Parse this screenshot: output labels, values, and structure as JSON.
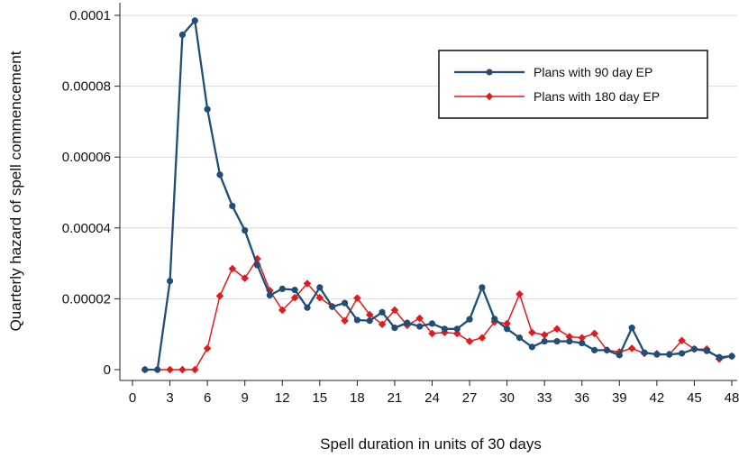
{
  "chart_data": {
    "type": "line",
    "title": "",
    "xlabel": "Spell duration in units of 30 days",
    "ylabel": "Quarterly hazard of spell commencement",
    "xlim": [
      0,
      48
    ],
    "ylim": [
      0,
      0.0001
    ],
    "xticks": [
      0,
      3,
      6,
      9,
      12,
      15,
      18,
      21,
      24,
      27,
      30,
      33,
      36,
      39,
      42,
      45,
      48
    ],
    "xtick_labels": [
      "0",
      "3",
      "6",
      "9",
      "12",
      "15",
      "18",
      "21",
      "24",
      "27",
      "30",
      "33",
      "36",
      "39",
      "42",
      "45",
      "48"
    ],
    "yticks": [
      0,
      2e-05,
      4e-05,
      6e-05,
      8e-05,
      0.0001
    ],
    "ytick_labels": [
      "0",
      "0.00002",
      "0.00004",
      "0.00006",
      "0.00008",
      "0.0001"
    ],
    "grid": "horizontal",
    "legend_position": "top-right",
    "x": [
      1,
      2,
      3,
      4,
      5,
      6,
      7,
      8,
      9,
      10,
      11,
      12,
      13,
      14,
      15,
      16,
      17,
      18,
      19,
      20,
      21,
      22,
      23,
      24,
      25,
      26,
      27,
      28,
      29,
      30,
      31,
      32,
      33,
      34,
      35,
      36,
      37,
      38,
      39,
      40,
      41,
      42,
      43,
      44,
      45,
      46,
      47,
      48
    ],
    "series": [
      {
        "name": "Plans with 90 day EP",
        "color": "#1f4e79",
        "marker": "circle",
        "values": [
          0,
          0,
          2.5e-05,
          9.45e-05,
          9.85e-05,
          7.35e-05,
          5.5e-05,
          4.62e-05,
          3.93e-05,
          2.95e-05,
          2.1e-05,
          2.28e-05,
          2.25e-05,
          1.75e-05,
          2.32e-05,
          1.78e-05,
          1.88e-05,
          1.4e-05,
          1.38e-05,
          1.62e-05,
          1.18e-05,
          1.32e-05,
          1.22e-05,
          1.3e-05,
          1.15e-05,
          1.15e-05,
          1.42e-05,
          2.32e-05,
          1.43e-05,
          1.15e-05,
          9e-06,
          6.4e-06,
          8e-06,
          8e-06,
          8e-06,
          7.5e-06,
          5.5e-06,
          5.5e-06,
          4.1e-06,
          1.18e-05,
          4.8e-06,
          4.3e-06,
          4.3e-06,
          4.6e-06,
          5.8e-06,
          5.3e-06,
          3.5e-06,
          3.8e-06
        ]
      },
      {
        "name": "Plans with 180 day EP",
        "color": "#e31a1c",
        "marker": "diamond",
        "values": [
          0,
          0,
          0,
          0,
          0,
          6e-06,
          2.08e-05,
          2.85e-05,
          2.58e-05,
          3.13e-05,
          2.23e-05,
          1.68e-05,
          2.03e-05,
          2.43e-05,
          2.03e-05,
          1.78e-05,
          1.38e-05,
          2.02e-05,
          1.55e-05,
          1.28e-05,
          1.68e-05,
          1.25e-05,
          1.45e-05,
          1.02e-05,
          1.05e-05,
          1.02e-05,
          8e-06,
          9e-06,
          1.35e-05,
          1.3e-05,
          2.13e-05,
          1.05e-05,
          9.8e-06,
          1.15e-05,
          9.3e-06,
          9e-06,
          1.02e-05,
          5.5e-06,
          5e-06,
          6e-06,
          4.6e-06,
          4.5e-06,
          4.3e-06,
          8.2e-06,
          5.8e-06,
          5.8e-06,
          3e-06,
          3.8e-06
        ]
      }
    ]
  }
}
